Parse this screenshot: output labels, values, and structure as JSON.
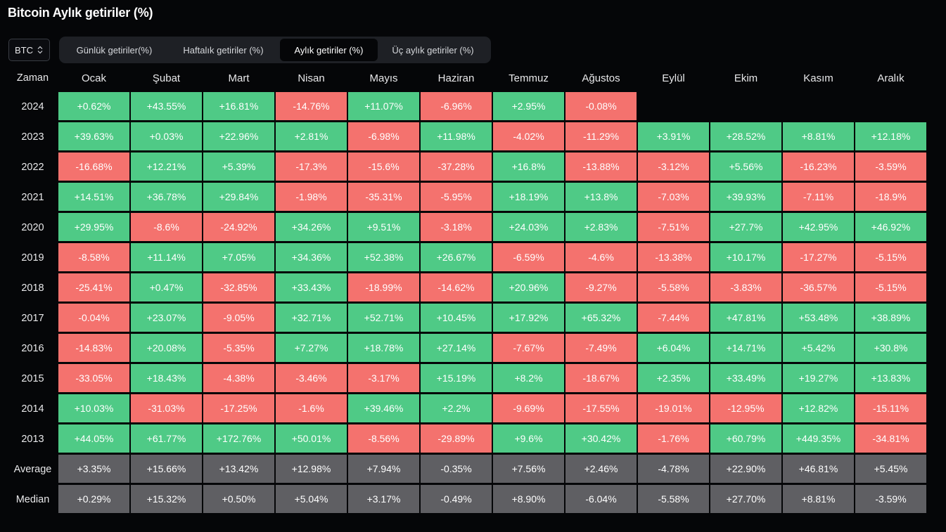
{
  "title": "Bitcoin Aylık getiriler (%)",
  "coin_select": {
    "value": "BTC"
  },
  "tabs": [
    {
      "label": "Günlük getiriler(%)",
      "active": false
    },
    {
      "label": "Haftalık getiriler (%)",
      "active": false
    },
    {
      "label": "Aylık getiriler (%)",
      "active": true
    },
    {
      "label": "Üç aylık getiriler (%)",
      "active": false
    }
  ],
  "colors": {
    "positive": "#4fca86",
    "negative": "#f4726e",
    "stat": "#5f5f63",
    "background": "#050608"
  },
  "table": {
    "corner_label": "Zaman",
    "columns": [
      "Ocak",
      "Şubat",
      "Mart",
      "Nisan",
      "Mayıs",
      "Haziran",
      "Temmuz",
      "Ağustos",
      "Eylül",
      "Ekim",
      "Kasım",
      "Aralık"
    ],
    "rows": [
      {
        "label": "2024",
        "kind": "year",
        "values": [
          "+0.62%",
          "+43.55%",
          "+16.81%",
          "-14.76%",
          "+11.07%",
          "-6.96%",
          "+2.95%",
          "-0.08%",
          "",
          "",
          "",
          ""
        ]
      },
      {
        "label": "2023",
        "kind": "year",
        "values": [
          "+39.63%",
          "+0.03%",
          "+22.96%",
          "+2.81%",
          "-6.98%",
          "+11.98%",
          "-4.02%",
          "-11.29%",
          "+3.91%",
          "+28.52%",
          "+8.81%",
          "+12.18%"
        ]
      },
      {
        "label": "2022",
        "kind": "year",
        "values": [
          "-16.68%",
          "+12.21%",
          "+5.39%",
          "-17.3%",
          "-15.6%",
          "-37.28%",
          "+16.8%",
          "-13.88%",
          "-3.12%",
          "+5.56%",
          "-16.23%",
          "-3.59%"
        ]
      },
      {
        "label": "2021",
        "kind": "year",
        "values": [
          "+14.51%",
          "+36.78%",
          "+29.84%",
          "-1.98%",
          "-35.31%",
          "-5.95%",
          "+18.19%",
          "+13.8%",
          "-7.03%",
          "+39.93%",
          "-7.11%",
          "-18.9%"
        ]
      },
      {
        "label": "2020",
        "kind": "year",
        "values": [
          "+29.95%",
          "-8.6%",
          "-24.92%",
          "+34.26%",
          "+9.51%",
          "-3.18%",
          "+24.03%",
          "+2.83%",
          "-7.51%",
          "+27.7%",
          "+42.95%",
          "+46.92%"
        ]
      },
      {
        "label": "2019",
        "kind": "year",
        "values": [
          "-8.58%",
          "+11.14%",
          "+7.05%",
          "+34.36%",
          "+52.38%",
          "+26.67%",
          "-6.59%",
          "-4.6%",
          "-13.38%",
          "+10.17%",
          "-17.27%",
          "-5.15%"
        ]
      },
      {
        "label": "2018",
        "kind": "year",
        "values": [
          "-25.41%",
          "+0.47%",
          "-32.85%",
          "+33.43%",
          "-18.99%",
          "-14.62%",
          "+20.96%",
          "-9.27%",
          "-5.58%",
          "-3.83%",
          "-36.57%",
          "-5.15%"
        ]
      },
      {
        "label": "2017",
        "kind": "year",
        "values": [
          "-0.04%",
          "+23.07%",
          "-9.05%",
          "+32.71%",
          "+52.71%",
          "+10.45%",
          "+17.92%",
          "+65.32%",
          "-7.44%",
          "+47.81%",
          "+53.48%",
          "+38.89%"
        ]
      },
      {
        "label": "2016",
        "kind": "year",
        "values": [
          "-14.83%",
          "+20.08%",
          "-5.35%",
          "+7.27%",
          "+18.78%",
          "+27.14%",
          "-7.67%",
          "-7.49%",
          "+6.04%",
          "+14.71%",
          "+5.42%",
          "+30.8%"
        ]
      },
      {
        "label": "2015",
        "kind": "year",
        "values": [
          "-33.05%",
          "+18.43%",
          "-4.38%",
          "-3.46%",
          "-3.17%",
          "+15.19%",
          "+8.2%",
          "-18.67%",
          "+2.35%",
          "+33.49%",
          "+19.27%",
          "+13.83%"
        ]
      },
      {
        "label": "2014",
        "kind": "year",
        "values": [
          "+10.03%",
          "-31.03%",
          "-17.25%",
          "-1.6%",
          "+39.46%",
          "+2.2%",
          "-9.69%",
          "-17.55%",
          "-19.01%",
          "-12.95%",
          "+12.82%",
          "-15.11%"
        ]
      },
      {
        "label": "2013",
        "kind": "year",
        "values": [
          "+44.05%",
          "+61.77%",
          "+172.76%",
          "+50.01%",
          "-8.56%",
          "-29.89%",
          "+9.6%",
          "+30.42%",
          "-1.76%",
          "+60.79%",
          "+449.35%",
          "-34.81%"
        ]
      },
      {
        "label": "Average",
        "kind": "stat",
        "values": [
          "+3.35%",
          "+15.66%",
          "+13.42%",
          "+12.98%",
          "+7.94%",
          "-0.35%",
          "+7.56%",
          "+2.46%",
          "-4.78%",
          "+22.90%",
          "+46.81%",
          "+5.45%"
        ]
      },
      {
        "label": "Median",
        "kind": "stat",
        "values": [
          "+0.29%",
          "+15.32%",
          "+0.50%",
          "+5.04%",
          "+3.17%",
          "-0.49%",
          "+8.90%",
          "-6.04%",
          "-5.58%",
          "+27.70%",
          "+8.81%",
          "-3.59%"
        ]
      }
    ]
  }
}
